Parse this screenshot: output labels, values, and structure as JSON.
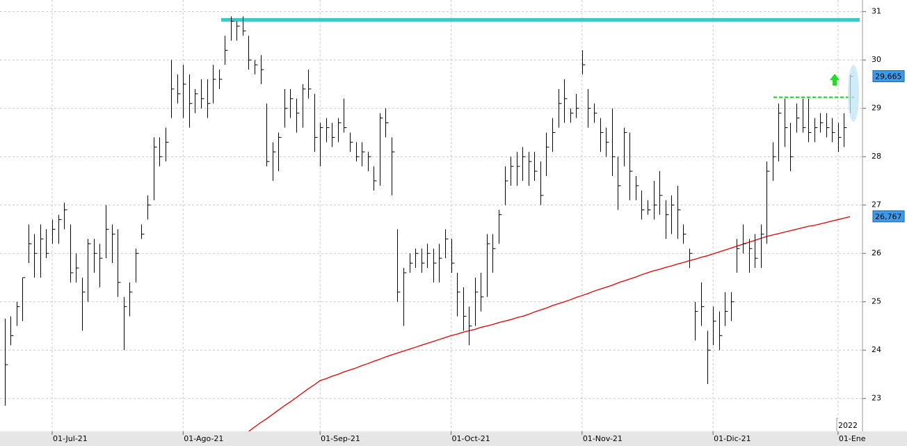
{
  "chart_data": {
    "type": "ohlc",
    "categories": [
      null,
      null,
      null,
      null,
      null,
      null,
      null,
      null,
      "01-Jul-21",
      null,
      null,
      null,
      null,
      null,
      null,
      null,
      null,
      null,
      null,
      null,
      null,
      null,
      null,
      null,
      null,
      null,
      null,
      null,
      null,
      null,
      "01-Ago-21",
      null,
      null,
      null,
      null,
      null,
      null,
      null,
      null,
      null,
      null,
      null,
      null,
      null,
      null,
      null,
      null,
      null,
      null,
      null,
      null,
      null,
      null,
      "01-Sep-21",
      null,
      null,
      null,
      null,
      null,
      null,
      null,
      null,
      null,
      null,
      null,
      null,
      null,
      null,
      null,
      null,
      null,
      null,
      null,
      null,
      null,
      "01-Oct-21",
      null,
      null,
      null,
      null,
      null,
      null,
      null,
      null,
      null,
      null,
      null,
      null,
      null,
      null,
      null,
      null,
      null,
      null,
      null,
      null,
      null,
      "01-Nov-21",
      null,
      null,
      null,
      null,
      null,
      null,
      null,
      null,
      null,
      null,
      null,
      null,
      null,
      null,
      null,
      null,
      null,
      null,
      null,
      null,
      null,
      "01-Dic-21",
      null,
      null,
      null,
      null,
      null,
      null,
      null,
      null,
      null,
      null,
      null,
      null,
      null,
      null,
      null,
      null,
      null,
      null,
      null,
      null,
      "01-Ene",
      null,
      null
    ],
    "high": [
      24.65,
      24.7,
      25.0,
      25.5,
      26.6,
      26.4,
      26.6,
      26.5,
      26.7,
      26.8,
      27.05,
      26.6,
      26.0,
      25.5,
      26.3,
      26.3,
      26.2,
      27.0,
      26.6,
      26.5,
      25.1,
      25.4,
      26.1,
      26.6,
      27.2,
      28.4,
      28.4,
      28.6,
      30.0,
      29.7,
      29.9,
      29.7,
      29.4,
      29.6,
      29.6,
      29.9,
      29.8,
      30.5,
      30.9,
      30.8,
      30.9,
      30.5,
      30.0,
      30.1,
      29.1,
      28.3,
      28.5,
      29.4,
      29.4,
      29.2,
      29.5,
      29.8,
      29.3,
      28.7,
      28.8,
      28.7,
      28.8,
      29.2,
      28.5,
      28.3,
      28.3,
      28.1,
      27.8,
      28.9,
      29.0,
      28.4,
      26.5,
      25.7,
      26.0,
      26.1,
      26.1,
      26.2,
      26.1,
      26.2,
      26.5,
      26.3,
      25.6,
      25.3,
      24.9,
      25.5,
      25.6,
      26.4,
      26.4,
      26.9,
      27.8,
      28.0,
      28.1,
      28.2,
      28.1,
      28.1,
      27.9,
      28.5,
      28.8,
      29.4,
      29.6,
      29.0,
      29.3,
      30.2,
      29.4,
      29.1,
      28.8,
      28.6,
      29.0,
      28.0,
      28.6,
      28.5,
      27.6,
      27.3,
      27.1,
      27.5,
      27.7,
      27.1,
      27.2,
      27.4,
      26.6,
      26.1,
      25.0,
      25.4,
      24.4,
      24.9,
      24.8,
      25.2,
      25.2,
      26.3,
      26.6,
      26.3,
      26.4,
      26.6,
      27.9,
      28.3,
      29.1,
      29.2,
      28.7,
      29.1,
      29.2,
      29.2,
      28.8,
      28.9,
      28.9,
      28.8,
      28.7,
      28.9,
      29.7
    ],
    "low": [
      22.85,
      24.1,
      24.5,
      24.6,
      25.8,
      25.5,
      25.5,
      25.9,
      26.2,
      26.2,
      26.5,
      25.4,
      25.4,
      24.4,
      25.0,
      25.6,
      25.3,
      25.9,
      25.8,
      25.1,
      24.0,
      24.7,
      25.4,
      26.3,
      26.7,
      27.1,
      27.8,
      27.9,
      28.8,
      29.1,
      28.8,
      28.6,
      28.9,
      29.0,
      28.8,
      29.1,
      29.4,
      29.9,
      30.4,
      30.4,
      30.5,
      29.8,
      29.7,
      29.5,
      27.8,
      27.5,
      27.7,
      28.6,
      28.8,
      28.5,
      28.6,
      29.2,
      28.1,
      27.8,
      28.3,
      28.2,
      28.3,
      28.5,
      28.1,
      27.9,
      27.8,
      27.7,
      27.3,
      27.4,
      28.4,
      27.2,
      25.0,
      24.5,
      25.6,
      25.7,
      25.6,
      25.7,
      25.4,
      25.4,
      25.9,
      25.6,
      24.7,
      24.4,
      24.1,
      24.5,
      24.8,
      25.1,
      25.6,
      26.2,
      27.0,
      27.4,
      27.4,
      27.5,
      27.4,
      27.5,
      27.0,
      27.6,
      28.1,
      28.6,
      28.7,
      28.7,
      28.8,
      29.7,
      28.6,
      28.7,
      28.1,
      28.0,
      27.6,
      26.9,
      27.8,
      27.1,
      27.1,
      26.7,
      26.8,
      26.7,
      26.8,
      26.3,
      26.4,
      26.3,
      26.2,
      25.7,
      24.2,
      24.5,
      23.3,
      24.1,
      24.0,
      24.5,
      24.6,
      25.6,
      26.0,
      25.6,
      25.7,
      25.7,
      26.2,
      27.5,
      27.9,
      28.2,
      27.7,
      28.5,
      28.5,
      28.3,
      28.3,
      28.5,
      28.4,
      28.3,
      28.1,
      28.2,
      28.9
    ],
    "close": [
      23.7,
      24.3,
      24.9,
      25.5,
      26.2,
      26.0,
      26.3,
      26.0,
      26.5,
      26.7,
      26.9,
      25.6,
      25.7,
      25.2,
      26.2,
      26.0,
      25.9,
      26.5,
      26.4,
      25.4,
      24.9,
      25.2,
      26.0,
      26.4,
      27.0,
      28.2,
      28.0,
      28.3,
      29.4,
      29.3,
      29.5,
      29.1,
      29.3,
      29.2,
      29.1,
      29.6,
      29.6,
      30.2,
      30.8,
      30.7,
      30.6,
      30.0,
      29.9,
      29.8,
      27.9,
      28.1,
      28.4,
      29.0,
      29.2,
      28.9,
      29.4,
      29.4,
      28.4,
      28.6,
      28.6,
      28.4,
      28.7,
      28.6,
      28.3,
      28.0,
      28.1,
      28.0,
      27.5,
      28.8,
      28.7,
      28.1,
      25.2,
      25.6,
      25.8,
      26.0,
      25.8,
      26.0,
      25.8,
      25.9,
      26.3,
      25.8,
      25.2,
      24.7,
      24.5,
      25.2,
      25.1,
      26.2,
      26.1,
      26.8,
      27.5,
      27.8,
      27.8,
      28.0,
      27.9,
      27.7,
      27.2,
      28.2,
      28.5,
      29.1,
      29.2,
      28.9,
      29.0,
      29.9,
      29.0,
      28.9,
      28.5,
      28.3,
      28.0,
      27.4,
      28.5,
      27.7,
      27.4,
      26.9,
      26.9,
      27.0,
      27.2,
      26.8,
      27.0,
      26.9,
      26.4,
      26.0,
      24.8,
      24.9,
      24.0,
      24.6,
      24.3,
      24.8,
      25.0,
      26.1,
      26.2,
      26.1,
      25.9,
      26.4,
      27.7,
      28.0,
      28.9,
      28.6,
      28.0,
      28.8,
      28.6,
      28.5,
      28.6,
      28.7,
      28.6,
      28.5,
      28.4,
      28.6,
      29.665
    ],
    "bar_color": "#000000",
    "ma": {
      "color": "#e00000",
      "values": [
        null,
        null,
        null,
        null,
        null,
        null,
        null,
        null,
        null,
        null,
        null,
        null,
        null,
        null,
        null,
        null,
        null,
        null,
        null,
        null,
        null,
        null,
        null,
        null,
        null,
        null,
        null,
        null,
        null,
        null,
        null,
        null,
        null,
        null,
        null,
        null,
        null,
        null,
        null,
        null,
        null,
        22.32,
        22.41,
        22.5,
        22.58,
        22.67,
        22.76,
        22.85,
        22.93,
        23.02,
        23.11,
        23.2,
        23.28,
        23.37,
        23.41,
        23.46,
        23.5,
        23.55,
        23.59,
        23.63,
        23.68,
        23.72,
        23.77,
        23.81,
        23.86,
        23.9,
        23.94,
        23.98,
        24.02,
        24.06,
        24.1,
        24.14,
        24.18,
        24.22,
        24.26,
        24.3,
        24.33,
        24.37,
        24.4,
        24.43,
        24.47,
        24.5,
        24.53,
        24.57,
        24.6,
        24.63,
        24.67,
        24.7,
        24.74,
        24.79,
        24.83,
        24.87,
        24.92,
        24.96,
        25.0,
        25.04,
        25.09,
        25.13,
        25.17,
        25.22,
        25.26,
        25.3,
        25.34,
        25.39,
        25.43,
        25.47,
        25.51,
        25.56,
        25.6,
        25.64,
        25.67,
        25.71,
        25.74,
        25.78,
        25.81,
        25.85,
        25.88,
        25.92,
        25.95,
        25.99,
        26.03,
        26.07,
        26.11,
        26.15,
        26.19,
        26.23,
        26.27,
        26.31,
        26.35,
        26.38,
        26.41,
        26.44,
        26.47,
        26.5,
        26.53,
        26.56,
        26.58,
        26.61,
        26.64,
        26.67,
        26.7,
        26.73,
        26.76
      ]
    },
    "resistance": {
      "value": 30.83,
      "color": "#3cc8c8"
    },
    "breakout": {
      "value": 29.23,
      "color": "#22cc22"
    },
    "price_label": {
      "value": 29.665,
      "label": "29,665",
      "color": "#3d9be9"
    },
    "ma_label": {
      "value": 26.767,
      "label": "26,767",
      "color": "#3d9be9"
    },
    "year_label": "2022",
    "ylim": [
      22.32,
      31.24
    ],
    "yticks": [
      23,
      24,
      25,
      26,
      27,
      28,
      29,
      30,
      31
    ],
    "grid": true
  }
}
